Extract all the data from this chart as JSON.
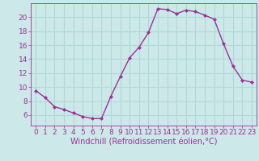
{
  "x": [
    0,
    1,
    2,
    3,
    4,
    5,
    6,
    7,
    8,
    9,
    10,
    11,
    12,
    13,
    14,
    15,
    16,
    17,
    18,
    19,
    20,
    21,
    22,
    23
  ],
  "y": [
    9.5,
    8.5,
    7.2,
    6.8,
    6.3,
    5.8,
    5.5,
    5.5,
    8.7,
    11.5,
    14.2,
    15.7,
    17.8,
    21.2,
    21.1,
    20.5,
    21.0,
    20.8,
    20.3,
    19.7,
    16.2,
    13.0,
    11.0,
    10.7
  ],
  "xlabel": "Windchill (Refroidissement éolien,°C)",
  "xlim": [
    -0.5,
    23.5
  ],
  "ylim": [
    4.5,
    22.0
  ],
  "yticks": [
    6,
    8,
    10,
    12,
    14,
    16,
    18,
    20
  ],
  "xticks": [
    0,
    1,
    2,
    3,
    4,
    5,
    6,
    7,
    8,
    9,
    10,
    11,
    12,
    13,
    14,
    15,
    16,
    17,
    18,
    19,
    20,
    21,
    22,
    23
  ],
  "line_color": "#993399",
  "marker": "D",
  "marker_size": 2,
  "bg_color": "#cce8e8",
  "grid_color": "#b0d8d8",
  "tick_color": "#993399",
  "label_color": "#993399",
  "font_size": 6.5,
  "xlabel_fontsize": 7.0
}
